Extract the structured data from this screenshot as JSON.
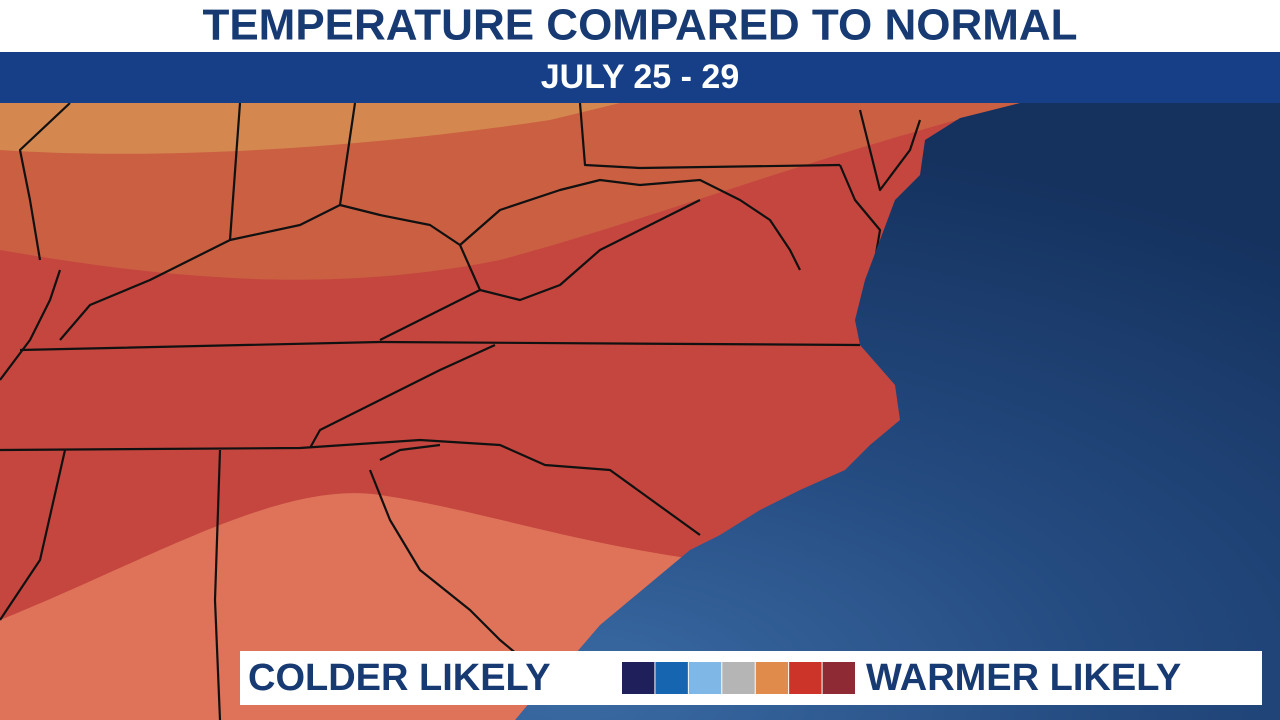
{
  "header": {
    "title": "TEMPERATURE COMPARED TO NORMAL",
    "subtitle": "JULY 25 - 29"
  },
  "legend": {
    "left_label": "COLDER LIKELY",
    "right_label": "WARMER LIKELY",
    "colors": [
      "#1f1f5c",
      "#1565b0",
      "#7fb8e6",
      "#b5b5b5",
      "#e08a4c",
      "#cc3329",
      "#8e2a33"
    ]
  }
}
